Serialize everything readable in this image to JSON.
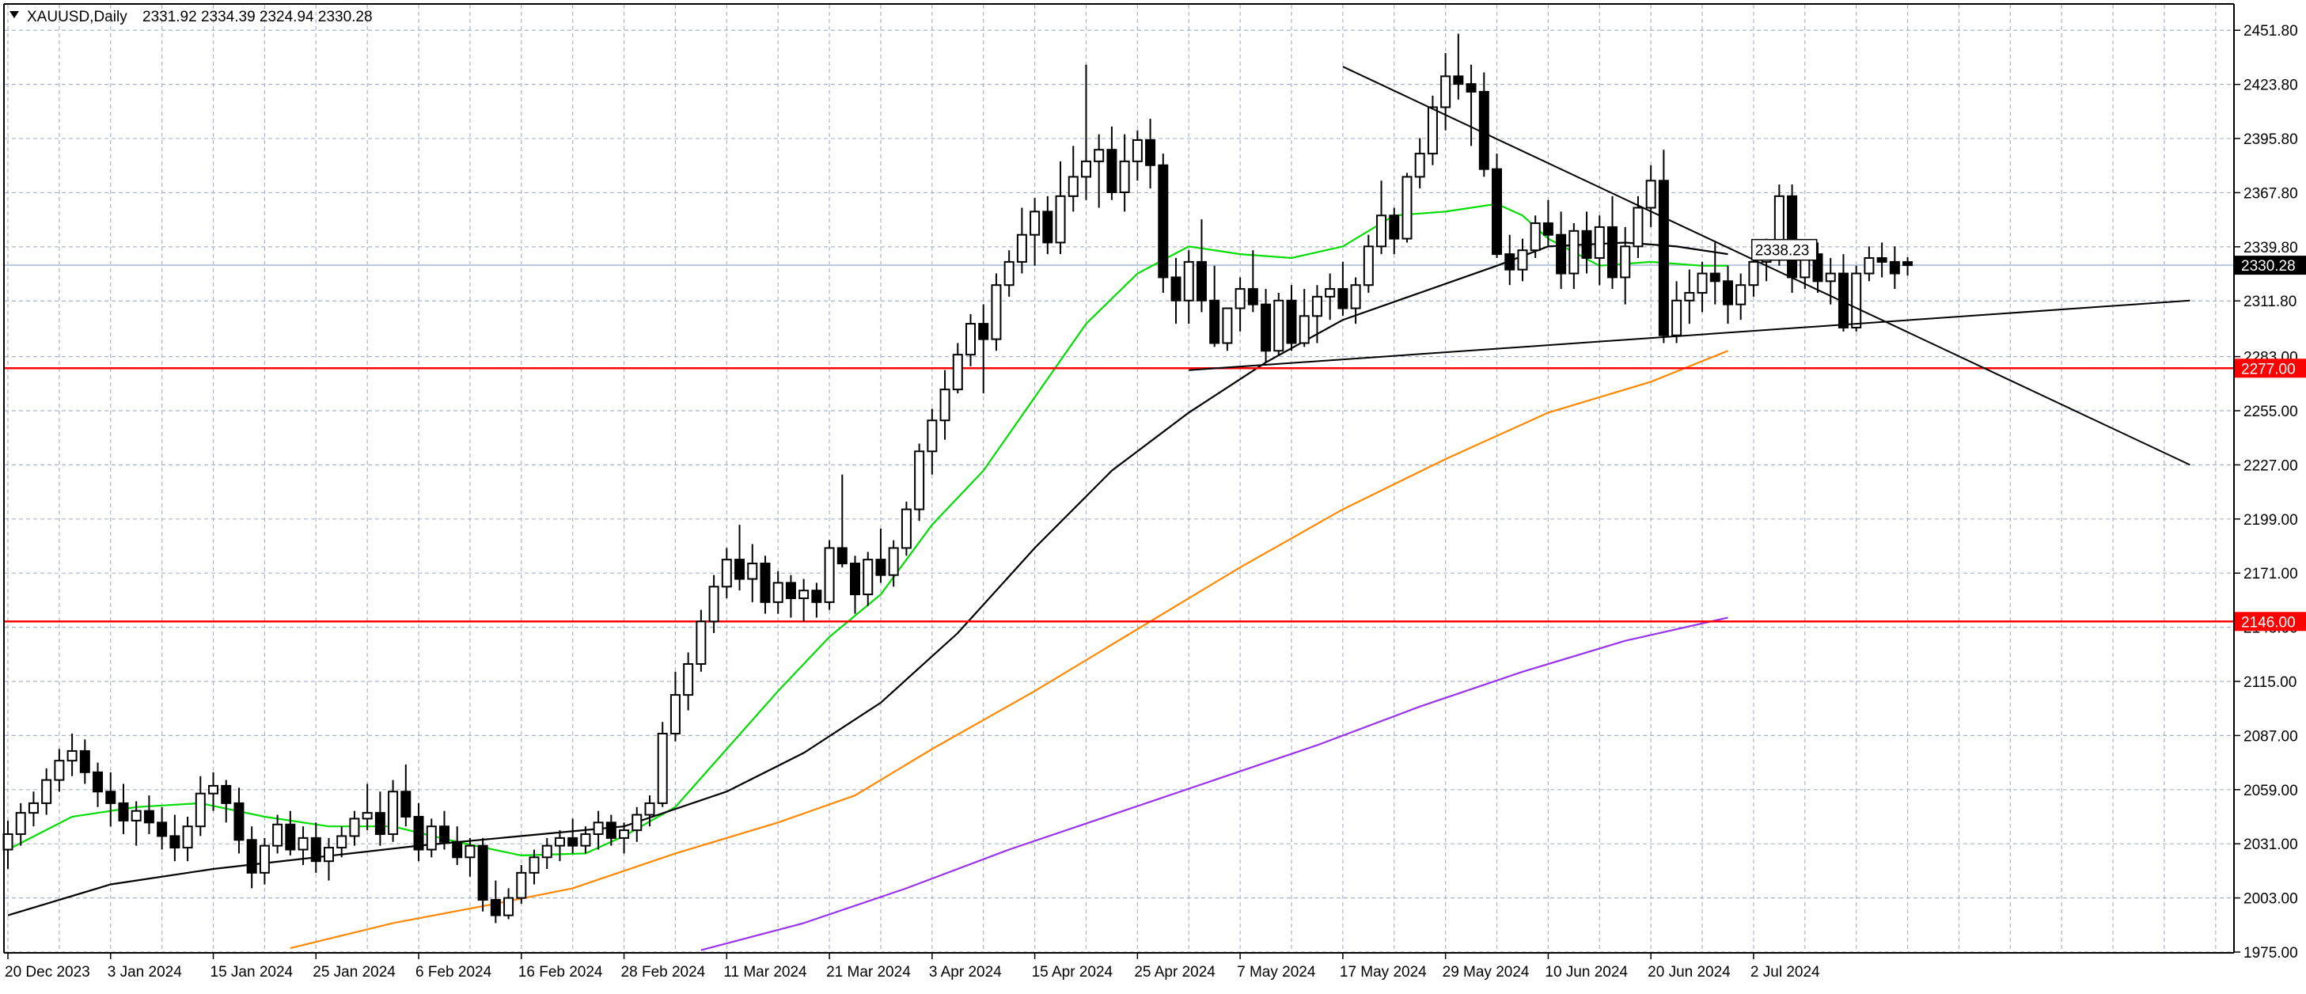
{
  "header": {
    "symbol": "XAUUSD,Daily",
    "ohlc": "2331.92 2334.39 2324.94 2330.28",
    "menu_icon": "triangle-down-icon"
  },
  "colors": {
    "background": "#ffffff",
    "grid": "#aab4c8",
    "candle": "#000000",
    "ma_fast": "#00dd00",
    "ma_mid": "#000000",
    "ma_slow": "#ff8800",
    "ma_long": "#9933ee",
    "hline": "#ff0000",
    "price_line": "#b8c8dc",
    "trendline": "#000000"
  },
  "chart_data": {
    "type": "candlestick",
    "title": "XAUUSD,Daily",
    "ylim": [
      1975,
      2465
    ],
    "price_axis_labels": [
      "2451.80",
      "2423.80",
      "2395.80",
      "2367.80",
      "2339.80",
      "2311.80",
      "2283.00",
      "2255.00",
      "2227.00",
      "2199.00",
      "2171.00",
      "2143.00",
      "2115.00",
      "2087.00",
      "2059.00",
      "2031.00",
      "2003.00",
      "1975.00"
    ],
    "date_axis_labels": [
      {
        "label": "20 Dec 2023",
        "i": 0
      },
      {
        "label": "3 Jan 2024",
        "i": 8
      },
      {
        "label": "15 Jan 2024",
        "i": 16
      },
      {
        "label": "25 Jan 2024",
        "i": 24
      },
      {
        "label": "6 Feb 2024",
        "i": 32
      },
      {
        "label": "16 Feb 2024",
        "i": 40
      },
      {
        "label": "28 Feb 2024",
        "i": 48
      },
      {
        "label": "11 Mar 2024",
        "i": 56
      },
      {
        "label": "21 Mar 2024",
        "i": 64
      },
      {
        "label": "3 Apr 2024",
        "i": 72
      },
      {
        "label": "15 Apr 2024",
        "i": 80
      },
      {
        "label": "25 Apr 2024",
        "i": 88
      },
      {
        "label": "7 May 2024",
        "i": 96
      },
      {
        "label": "17 May 2024",
        "i": 104
      },
      {
        "label": "29 May 2024",
        "i": 112
      },
      {
        "label": "10 Jun 2024",
        "i": 120
      },
      {
        "label": "20 Jun 2024",
        "i": 128
      },
      {
        "label": "2 Jul 2024",
        "i": 136
      }
    ],
    "candles": [
      [
        2028,
        2043,
        2018,
        2036
      ],
      [
        2036,
        2052,
        2030,
        2047
      ],
      [
        2047,
        2058,
        2040,
        2052
      ],
      [
        2052,
        2070,
        2046,
        2064
      ],
      [
        2064,
        2080,
        2058,
        2074
      ],
      [
        2074,
        2088,
        2066,
        2079
      ],
      [
        2079,
        2085,
        2062,
        2068
      ],
      [
        2068,
        2073,
        2050,
        2058
      ],
      [
        2058,
        2068,
        2040,
        2052
      ],
      [
        2052,
        2062,
        2036,
        2043
      ],
      [
        2043,
        2053,
        2030,
        2048
      ],
      [
        2048,
        2056,
        2036,
        2042
      ],
      [
        2042,
        2050,
        2028,
        2035
      ],
      [
        2035,
        2046,
        2022,
        2029
      ],
      [
        2029,
        2045,
        2022,
        2040
      ],
      [
        2040,
        2066,
        2035,
        2057
      ],
      [
        2057,
        2068,
        2048,
        2061
      ],
      [
        2061,
        2064,
        2042,
        2052
      ],
      [
        2052,
        2060,
        2026,
        2033
      ],
      [
        2033,
        2040,
        2008,
        2016
      ],
      [
        2016,
        2034,
        2010,
        2030
      ],
      [
        2030,
        2046,
        2026,
        2041
      ],
      [
        2041,
        2048,
        2025,
        2028
      ],
      [
        2028,
        2040,
        2020,
        2034
      ],
      [
        2034,
        2042,
        2016,
        2022
      ],
      [
        2022,
        2034,
        2012,
        2029
      ],
      [
        2029,
        2040,
        2024,
        2035
      ],
      [
        2035,
        2048,
        2030,
        2044
      ],
      [
        2044,
        2062,
        2038,
        2047
      ],
      [
        2047,
        2058,
        2030,
        2036
      ],
      [
        2036,
        2064,
        2032,
        2058
      ],
      [
        2058,
        2072,
        2040,
        2045
      ],
      [
        2045,
        2052,
        2022,
        2028
      ],
      [
        2028,
        2044,
        2024,
        2040
      ],
      [
        2040,
        2048,
        2028,
        2032
      ],
      [
        2032,
        2040,
        2020,
        2024
      ],
      [
        2024,
        2034,
        2014,
        2030
      ],
      [
        2030,
        2034,
        1996,
        2002
      ],
      [
        2002,
        2012,
        1990,
        1994
      ],
      [
        1994,
        2008,
        1992,
        2003
      ],
      [
        2003,
        2020,
        2000,
        2016
      ],
      [
        2016,
        2028,
        2010,
        2024
      ],
      [
        2024,
        2034,
        2018,
        2030
      ],
      [
        2030,
        2038,
        2022,
        2034
      ],
      [
        2034,
        2044,
        2026,
        2030
      ],
      [
        2030,
        2040,
        2026,
        2036
      ],
      [
        2036,
        2048,
        2028,
        2042
      ],
      [
        2042,
        2046,
        2030,
        2034
      ],
      [
        2034,
        2042,
        2026,
        2038
      ],
      [
        2038,
        2050,
        2032,
        2046
      ],
      [
        2046,
        2056,
        2040,
        2052
      ],
      [
        2052,
        2094,
        2050,
        2088
      ],
      [
        2088,
        2120,
        2084,
        2108
      ],
      [
        2108,
        2130,
        2100,
        2124
      ],
      [
        2124,
        2152,
        2120,
        2146
      ],
      [
        2146,
        2170,
        2140,
        2164
      ],
      [
        2164,
        2184,
        2158,
        2178
      ],
      [
        2178,
        2196,
        2162,
        2168
      ],
      [
        2168,
        2186,
        2156,
        2176
      ],
      [
        2176,
        2180,
        2150,
        2156
      ],
      [
        2156,
        2172,
        2150,
        2166
      ],
      [
        2166,
        2170,
        2148,
        2158
      ],
      [
        2158,
        2168,
        2146,
        2162
      ],
      [
        2162,
        2166,
        2148,
        2156
      ],
      [
        2156,
        2188,
        2152,
        2184
      ],
      [
        2184,
        2222,
        2174,
        2176
      ],
      [
        2176,
        2180,
        2150,
        2160
      ],
      [
        2160,
        2182,
        2154,
        2178
      ],
      [
        2178,
        2194,
        2166,
        2170
      ],
      [
        2170,
        2188,
        2164,
        2184
      ],
      [
        2184,
        2208,
        2180,
        2204
      ],
      [
        2204,
        2238,
        2198,
        2234
      ],
      [
        2234,
        2256,
        2222,
        2250
      ],
      [
        2250,
        2276,
        2240,
        2266
      ],
      [
        2266,
        2290,
        2264,
        2284
      ],
      [
        2284,
        2305,
        2278,
        2300
      ],
      [
        2300,
        2310,
        2264,
        2292
      ],
      [
        2292,
        2326,
        2286,
        2320
      ],
      [
        2320,
        2338,
        2314,
        2332
      ],
      [
        2332,
        2360,
        2326,
        2346
      ],
      [
        2346,
        2365,
        2330,
        2358
      ],
      [
        2358,
        2366,
        2336,
        2342
      ],
      [
        2342,
        2384,
        2336,
        2366
      ],
      [
        2366,
        2392,
        2358,
        2376
      ],
      [
        2376,
        2434,
        2364,
        2384
      ],
      [
        2384,
        2398,
        2360,
        2390
      ],
      [
        2390,
        2402,
        2364,
        2368
      ],
      [
        2368,
        2398,
        2358,
        2384
      ],
      [
        2384,
        2400,
        2374,
        2395
      ],
      [
        2395,
        2406,
        2370,
        2382
      ],
      [
        2382,
        2388,
        2316,
        2324
      ],
      [
        2324,
        2334,
        2300,
        2312
      ],
      [
        2312,
        2338,
        2300,
        2332
      ],
      [
        2332,
        2354,
        2306,
        2312
      ],
      [
        2312,
        2330,
        2288,
        2290
      ],
      [
        2290,
        2308,
        2286,
        2308
      ],
      [
        2308,
        2324,
        2296,
        2318
      ],
      [
        2318,
        2338,
        2306,
        2310
      ],
      [
        2310,
        2318,
        2280,
        2286
      ],
      [
        2286,
        2316,
        2284,
        2312
      ],
      [
        2312,
        2320,
        2286,
        2290
      ],
      [
        2290,
        2318,
        2288,
        2304
      ],
      [
        2304,
        2320,
        2290,
        2314
      ],
      [
        2314,
        2326,
        2302,
        2318
      ],
      [
        2318,
        2332,
        2304,
        2308
      ],
      [
        2308,
        2324,
        2300,
        2320
      ],
      [
        2320,
        2346,
        2316,
        2340
      ],
      [
        2340,
        2374,
        2336,
        2356
      ],
      [
        2356,
        2360,
        2336,
        2344
      ],
      [
        2344,
        2378,
        2342,
        2376
      ],
      [
        2376,
        2396,
        2370,
        2388
      ],
      [
        2388,
        2418,
        2382,
        2412
      ],
      [
        2412,
        2440,
        2400,
        2428
      ],
      [
        2428,
        2450,
        2416,
        2424
      ],
      [
        2424,
        2434,
        2392,
        2420
      ],
      [
        2420,
        2430,
        2376,
        2380
      ],
      [
        2380,
        2388,
        2334,
        2336
      ],
      [
        2336,
        2346,
        2320,
        2328
      ],
      [
        2328,
        2344,
        2322,
        2338
      ],
      [
        2338,
        2356,
        2334,
        2352
      ],
      [
        2352,
        2364,
        2340,
        2346
      ],
      [
        2346,
        2358,
        2318,
        2326
      ],
      [
        2326,
        2352,
        2318,
        2348
      ],
      [
        2348,
        2358,
        2326,
        2334
      ],
      [
        2334,
        2356,
        2320,
        2350
      ],
      [
        2350,
        2366,
        2318,
        2324
      ],
      [
        2324,
        2350,
        2310,
        2340
      ],
      [
        2340,
        2366,
        2334,
        2360
      ],
      [
        2360,
        2382,
        2350,
        2374
      ],
      [
        2374,
        2390,
        2290,
        2294
      ],
      [
        2294,
        2322,
        2290,
        2312
      ],
      [
        2312,
        2328,
        2300,
        2316
      ],
      [
        2316,
        2332,
        2306,
        2326
      ],
      [
        2326,
        2342,
        2310,
        2322
      ],
      [
        2322,
        2330,
        2300,
        2310
      ],
      [
        2310,
        2326,
        2302,
        2320
      ],
      [
        2320,
        2338,
        2314,
        2332
      ],
      [
        2332,
        2344,
        2322,
        2336
      ],
      [
        2336,
        2372,
        2330,
        2366
      ],
      [
        2366,
        2372,
        2316,
        2324
      ],
      [
        2324,
        2342,
        2318,
        2336
      ],
      [
        2336,
        2342,
        2316,
        2322
      ],
      [
        2322,
        2334,
        2310,
        2326
      ],
      [
        2326,
        2336,
        2296,
        2298
      ],
      [
        2298,
        2330,
        2296,
        2326
      ],
      [
        2326,
        2340,
        2322,
        2334
      ],
      [
        2334,
        2342,
        2324,
        2332
      ],
      [
        2332,
        2340,
        2318,
        2326
      ],
      [
        2331.92,
        2334.39,
        2324.94,
        2330.28
      ]
    ],
    "moving_averages": [
      {
        "color": "#00dd00",
        "points": [
          [
            0,
            2028
          ],
          [
            5,
            2045
          ],
          [
            10,
            2050
          ],
          [
            15,
            2052
          ],
          [
            20,
            2045
          ],
          [
            25,
            2040
          ],
          [
            30,
            2040
          ],
          [
            35,
            2032
          ],
          [
            40,
            2025
          ],
          [
            45,
            2026
          ],
          [
            48,
            2035
          ],
          [
            52,
            2050
          ],
          [
            56,
            2080
          ],
          [
            60,
            2110
          ],
          [
            64,
            2138
          ],
          [
            68,
            2160
          ],
          [
            72,
            2196
          ],
          [
            76,
            2224
          ],
          [
            80,
            2262
          ],
          [
            84,
            2300
          ],
          [
            88,
            2326
          ],
          [
            92,
            2340
          ],
          [
            96,
            2336
          ],
          [
            100,
            2334
          ],
          [
            104,
            2340
          ],
          [
            108,
            2356
          ],
          [
            112,
            2358
          ],
          [
            116,
            2362
          ],
          [
            118,
            2356
          ],
          [
            120,
            2344
          ],
          [
            124,
            2330
          ],
          [
            128,
            2332
          ],
          [
            132,
            2330
          ],
          [
            134,
            2330
          ]
        ]
      },
      {
        "color": "#000000",
        "points": [
          [
            0,
            1994
          ],
          [
            8,
            2010
          ],
          [
            16,
            2018
          ],
          [
            24,
            2024
          ],
          [
            32,
            2030
          ],
          [
            40,
            2035
          ],
          [
            48,
            2040
          ],
          [
            56,
            2058
          ],
          [
            62,
            2078
          ],
          [
            68,
            2104
          ],
          [
            74,
            2140
          ],
          [
            80,
            2184
          ],
          [
            86,
            2224
          ],
          [
            92,
            2254
          ],
          [
            98,
            2280
          ],
          [
            104,
            2302
          ],
          [
            110,
            2316
          ],
          [
            116,
            2330
          ],
          [
            120,
            2340
          ],
          [
            126,
            2342
          ],
          [
            130,
            2340
          ],
          [
            134,
            2336
          ]
        ]
      },
      {
        "color": "#ff8800",
        "points": [
          [
            22,
            1977
          ],
          [
            30,
            1990
          ],
          [
            38,
            2000
          ],
          [
            44,
            2008
          ],
          [
            52,
            2026
          ],
          [
            60,
            2042
          ],
          [
            66,
            2056
          ],
          [
            72,
            2080
          ],
          [
            80,
            2110
          ],
          [
            88,
            2142
          ],
          [
            96,
            2174
          ],
          [
            104,
            2204
          ],
          [
            112,
            2230
          ],
          [
            120,
            2254
          ],
          [
            128,
            2270
          ],
          [
            134,
            2286
          ]
        ]
      },
      {
        "color": "#9933ee",
        "points": [
          [
            54,
            1976
          ],
          [
            62,
            1990
          ],
          [
            70,
            2008
          ],
          [
            78,
            2028
          ],
          [
            86,
            2046
          ],
          [
            94,
            2064
          ],
          [
            102,
            2082
          ],
          [
            110,
            2102
          ],
          [
            118,
            2120
          ],
          [
            126,
            2136
          ],
          [
            134,
            2148
          ]
        ]
      }
    ],
    "hlines": [
      {
        "value": 2277.0,
        "label": "2277.00"
      },
      {
        "value": 2146.0,
        "label": "2146.00"
      }
    ],
    "current_price": {
      "value": 2330.28,
      "label": "2330.28"
    },
    "trendlines": [
      {
        "p1": [
          104,
          2433
        ],
        "p2": [
          170,
          2227
        ]
      },
      {
        "p1": [
          92,
          2276
        ],
        "p2": [
          170,
          2312
        ]
      }
    ],
    "price_tag": {
      "i": 135,
      "value": 2338.23,
      "label": "2338.23"
    }
  }
}
